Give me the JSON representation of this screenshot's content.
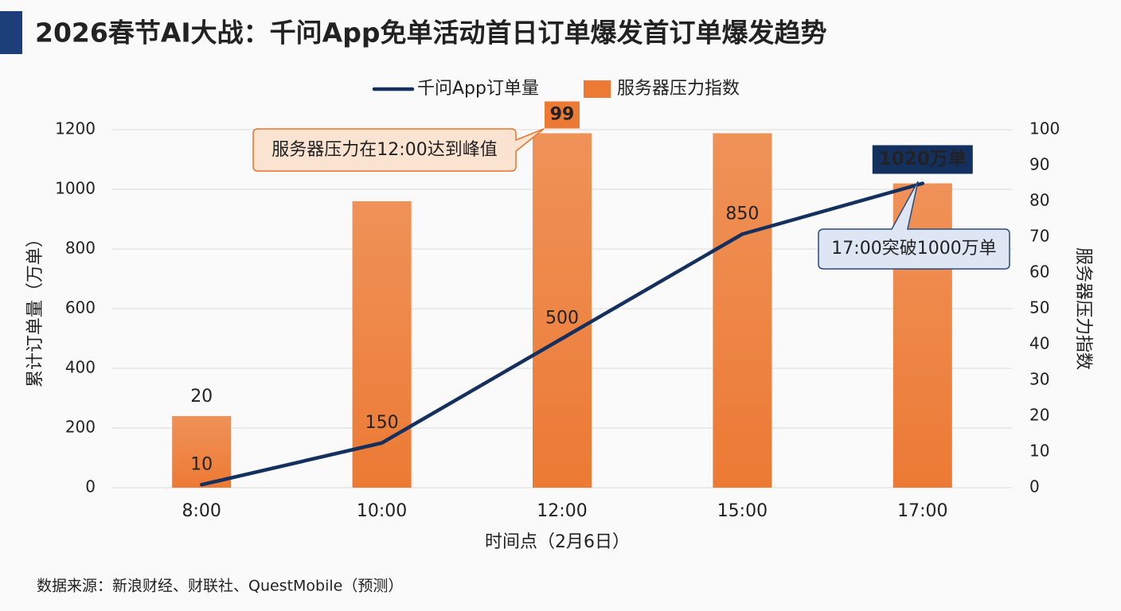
{
  "chart_data": {
    "type": "combo",
    "title": "2026春节AI大战：千问App免单活动首日订单爆发首订单爆发趋势",
    "categories": [
      "8:00",
      "10:00",
      "12:00",
      "15:00",
      "17:00"
    ],
    "series": [
      {
        "name": "千问App订单量",
        "type": "line",
        "axis": "y",
        "color": "#14305e",
        "values": [
          10,
          150,
          500,
          850,
          1020
        ],
        "value_labels": [
          "10",
          "150",
          "500",
          "850",
          "1020万单"
        ]
      },
      {
        "name": "服务器压力指数",
        "type": "bar",
        "axis": "y2",
        "color": "#ec7a34",
        "values": [
          20,
          80,
          99,
          99,
          85
        ],
        "value_labels": [
          "20",
          null,
          "99",
          null,
          null
        ]
      }
    ],
    "xlabel": "时间点（2月6日）",
    "ylabel": "累计订单量（万单）",
    "y2label": "服务器压力指数",
    "ylim": [
      0,
      1200
    ],
    "yticks": [
      0,
      200,
      400,
      600,
      800,
      1000,
      1200
    ],
    "y2lim": [
      0,
      100
    ],
    "y2ticks": [
      0,
      10,
      20,
      30,
      40,
      50,
      60,
      70,
      80,
      90,
      100
    ],
    "grid": true,
    "legend": "top",
    "annotations": [
      "服务器压力在12:00达到峰值",
      "17:00突破1000万单"
    ],
    "source": "数据来源：新浪财经、财联社、QuestMobile（预测）"
  }
}
